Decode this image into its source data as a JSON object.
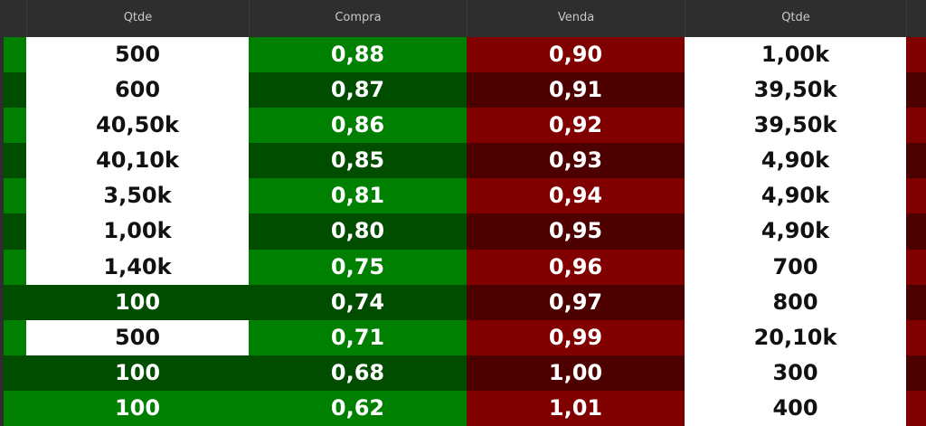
{
  "columns": [
    "Qtde",
    "Compra",
    "Venda",
    "Qtde"
  ],
  "colors": {
    "buy_bright": "#008000",
    "buy_dark": "#004d00",
    "sell_bright": "#800000",
    "sell_dark": "#4d0000",
    "highlight": "#ffffff"
  },
  "rows": [
    {
      "buy_qty": "500",
      "buy_qty_highlight": true,
      "buy": "0,88",
      "sell": "0,90",
      "sell_qty": "1,00k"
    },
    {
      "buy_qty": "600",
      "buy_qty_highlight": true,
      "buy": "0,87",
      "sell": "0,91",
      "sell_qty": "39,50k"
    },
    {
      "buy_qty": "40,50k",
      "buy_qty_highlight": true,
      "buy": "0,86",
      "sell": "0,92",
      "sell_qty": "39,50k"
    },
    {
      "buy_qty": "40,10k",
      "buy_qty_highlight": true,
      "buy": "0,85",
      "sell": "0,93",
      "sell_qty": "4,90k"
    },
    {
      "buy_qty": "3,50k",
      "buy_qty_highlight": true,
      "buy": "0,81",
      "sell": "0,94",
      "sell_qty": "4,90k"
    },
    {
      "buy_qty": "1,00k",
      "buy_qty_highlight": true,
      "buy": "0,80",
      "sell": "0,95",
      "sell_qty": "4,90k"
    },
    {
      "buy_qty": "1,40k",
      "buy_qty_highlight": true,
      "buy": "0,75",
      "sell": "0,96",
      "sell_qty": "700"
    },
    {
      "buy_qty": "100",
      "buy_qty_highlight": false,
      "buy": "0,74",
      "sell": "0,97",
      "sell_qty": "800"
    },
    {
      "buy_qty": "500",
      "buy_qty_highlight": true,
      "buy": "0,71",
      "sell": "0,99",
      "sell_qty": "20,10k"
    },
    {
      "buy_qty": "100",
      "buy_qty_highlight": false,
      "buy": "0,68",
      "sell": "1,00",
      "sell_qty": "300"
    },
    {
      "buy_qty": "100",
      "buy_qty_highlight": false,
      "buy": "0,62",
      "sell": "1,01",
      "sell_qty": "400"
    }
  ]
}
